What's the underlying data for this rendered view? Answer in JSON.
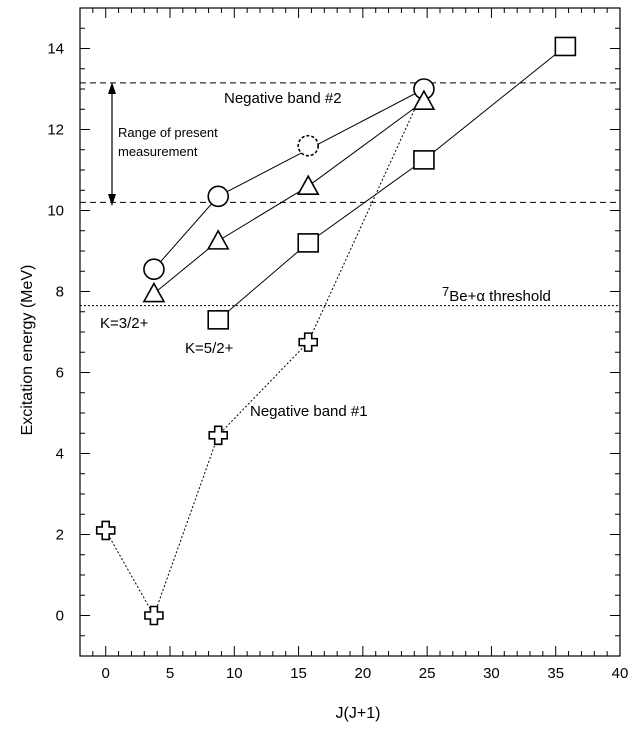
{
  "chart_data": {
    "type": "scatter",
    "title": "",
    "xlabel": "J(J+1)",
    "ylabel": "Excitation energy (MeV)",
    "xlim": [
      -2,
      40
    ],
    "ylim": [
      -1,
      15
    ],
    "x_ticks": [
      0,
      5,
      10,
      15,
      20,
      25,
      30,
      35,
      40
    ],
    "y_ticks": [
      0,
      2,
      4,
      6,
      8,
      10,
      12,
      14
    ],
    "grid": false,
    "legend": "none",
    "colors": {
      "axis": "#000000",
      "line": "#000000",
      "background": "#ffffff"
    },
    "series": [
      {
        "marker": "cross",
        "line_style": "dotted",
        "points": [
          {
            "x": 0,
            "y": 2.1
          },
          {
            "x": 3.75,
            "y": 0.0
          },
          {
            "x": 8.75,
            "y": 4.45
          },
          {
            "x": 15.75,
            "y": 6.75
          },
          {
            "x": 24.75,
            "y": 13.0
          }
        ]
      },
      {
        "marker": "circle",
        "line_style": "solid",
        "points": [
          {
            "x": 3.75,
            "y": 8.55
          },
          {
            "x": 8.75,
            "y": 10.35
          },
          {
            "x": 24.75,
            "y": 13.0
          }
        ]
      },
      {
        "marker": "circle-dashed",
        "line_style": "none",
        "points": [
          {
            "x": 15.75,
            "y": 11.6
          }
        ]
      },
      {
        "marker": "triangle",
        "line_style": "solid",
        "points": [
          {
            "x": 3.75,
            "y": 7.95
          },
          {
            "x": 8.75,
            "y": 9.25
          },
          {
            "x": 15.75,
            "y": 10.6
          },
          {
            "x": 24.75,
            "y": 12.7
          }
        ]
      },
      {
        "marker": "square",
        "line_style": "solid",
        "points": [
          {
            "x": 8.75,
            "y": 7.3
          },
          {
            "x": 15.75,
            "y": 9.2
          },
          {
            "x": 24.75,
            "y": 11.25
          },
          {
            "x": 35.75,
            "y": 14.05
          }
        ]
      }
    ],
    "hlines": [
      {
        "y": 13.15,
        "style": "dashed"
      },
      {
        "y": 10.2,
        "style": "dashed"
      },
      {
        "y": 7.65,
        "style": "dotted"
      }
    ],
    "annotations": {
      "negative_band_2": "Negative band #2",
      "negative_band_1": "Negative band #1",
      "range_line1": "Range of present",
      "range_line2": "measurement",
      "threshold_sup": "7",
      "threshold_text": "Be+α threshold",
      "k32": "K=3/2+",
      "k52": "K=5/2+"
    }
  }
}
